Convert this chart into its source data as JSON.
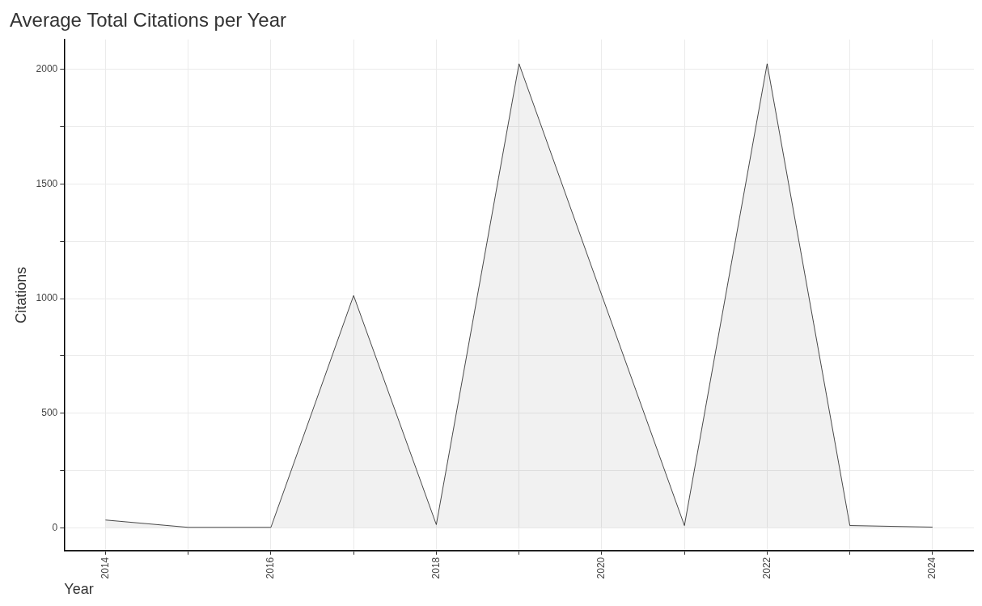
{
  "chart_data": {
    "type": "area",
    "title": "Average Total Citations per Year",
    "xlabel": "Year",
    "ylabel": "Citations",
    "x": [
      2014,
      2015,
      2016,
      2017,
      2018,
      2019,
      2020,
      2021,
      2022,
      2023,
      2024
    ],
    "series": [
      {
        "color": "#1a1a1a",
        "values": [
          34,
          2,
          2,
          1013,
          14,
          2024,
          1015,
          10,
          2024,
          10,
          3
        ]
      }
    ],
    "xlim": [
      2013.5,
      2024.5
    ],
    "xticks": [
      2014,
      {
        "value": 2015,
        "label": null
      },
      2016,
      {
        "value": 2017,
        "label": null
      },
      2018,
      {
        "value": 2019,
        "label": null
      },
      2020,
      {
        "value": 2021,
        "label": null
      },
      2022,
      {
        "value": 2023,
        "label": null
      },
      2024
    ],
    "ylim": [
      -100,
      2130
    ],
    "yticks": [
      0,
      {
        "value": 250,
        "label": null
      },
      500,
      {
        "value": 750,
        "label": null
      },
      1000,
      {
        "value": 1250,
        "label": null
      },
      1500,
      {
        "value": 1750,
        "label": null
      },
      2000
    ],
    "grid": true,
    "legend": false,
    "marker": "none",
    "line_style": "solid"
  }
}
